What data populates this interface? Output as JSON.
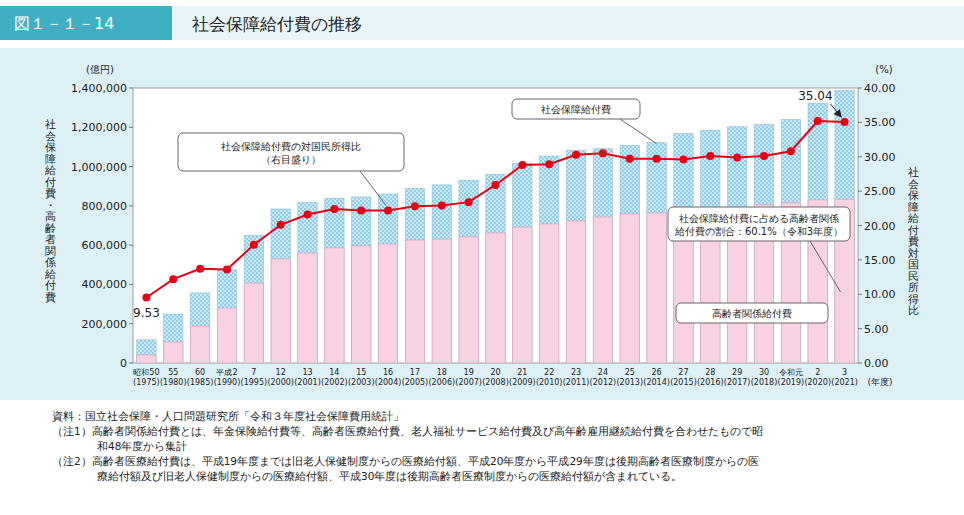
{
  "chart_data": {
    "type": "bar",
    "figure_number": "図１－１－14",
    "title": "社会保障給付費の推移",
    "categories": [
      "昭和50\n(1975)",
      "55\n(1980)",
      "60\n(1985)",
      "平成2\n(1990)",
      "7\n(1995)",
      "12\n(2000)",
      "13\n(2001)",
      "14\n(2002)",
      "15\n(2003)",
      "16\n(2004)",
      "17\n(2005)",
      "18\n(2006)",
      "19\n(2007)",
      "20\n(2008)",
      "21\n(2009)",
      "22\n(2010)",
      "23\n(2011)",
      "24\n(2012)",
      "25\n(2013)",
      "26\n(2014)",
      "27\n(2015)",
      "28\n(2016)",
      "29\n(2017)",
      "30\n(2018)",
      "令和元\n(2019)",
      "2\n(2020)",
      "3\n(2021)"
    ],
    "series": [
      {
        "name": "社会保障給付費",
        "type": "bar",
        "color": "#c9ebf8",
        "values": [
          117693,
          249016,
          356798,
          474238,
          649842,
          783985,
          816784,
          838402,
          845305,
          860436,
          888529,
          906727,
          930702,
          959975,
          1016977,
          1053656,
          1082745,
          1090782,
          1107796,
          1121734,
          1168403,
          1184089,
          1202443,
          1213987,
          1239241,
          1322211,
          1387433
        ]
      },
      {
        "name": "高齢者関係給付費",
        "type": "bar",
        "color": "#f8d2e3",
        "values": [
          41000,
          107000,
          188000,
          280000,
          407000,
          530000,
          560000,
          586000,
          596000,
          606000,
          626000,
          631000,
          642000,
          662000,
          692000,
          708000,
          723000,
          743000,
          759000,
          764000,
          774000,
          784000,
          789000,
          805000,
          815000,
          830000,
          834000
        ]
      },
      {
        "name": "社会保障給付費の対国民所得比",
        "type": "line",
        "axis": "y2",
        "color": "#e60012",
        "marker": "circle",
        "values": [
          9.53,
          12.2,
          13.7,
          13.6,
          17.2,
          20.1,
          21.6,
          22.4,
          22.2,
          22.2,
          22.8,
          22.9,
          23.4,
          25.9,
          28.8,
          28.9,
          30.3,
          30.5,
          29.7,
          29.7,
          29.6,
          30.1,
          29.9,
          30.1,
          30.8,
          35.2,
          35.04
        ],
        "value_labels": [
          "9.53",
          null,
          null,
          null,
          null,
          null,
          null,
          null,
          null,
          null,
          null,
          null,
          null,
          null,
          null,
          null,
          null,
          null,
          null,
          null,
          null,
          null,
          null,
          null,
          null,
          null,
          "35.04"
        ]
      }
    ],
    "stacked": false,
    "grid": false,
    "ylim": [
      0,
      1400000
    ],
    "yticks": [
      0,
      {
        "value": 200000,
        "label": "200,000"
      },
      {
        "value": 400000,
        "label": "400,000"
      },
      {
        "value": 600000,
        "label": "600,000"
      },
      {
        "value": 800000,
        "label": "800,000"
      },
      {
        "value": 1000000,
        "label": "1,000,000"
      },
      {
        "value": 1200000,
        "label": "1,200,000"
      },
      {
        "value": 1400000,
        "label": "1,400,000"
      }
    ],
    "y2lim": [
      0,
      40
    ],
    "y2ticks": [
      {
        "value": 0,
        "label": "0.00"
      },
      {
        "value": 5,
        "label": "5.00"
      },
      {
        "value": 10,
        "label": "10.00"
      },
      {
        "value": 15,
        "label": "15.00"
      },
      {
        "value": 20,
        "label": "20.00"
      },
      {
        "value": 25,
        "label": "25.00"
      },
      {
        "value": 30,
        "label": "30.00"
      },
      {
        "value": 35,
        "label": "35.00"
      },
      {
        "value": 40,
        "label": "40.00"
      }
    ],
    "y_unit": "(億円)",
    "y_label": "社会保障給付費・高齢者関係給付費",
    "y2_unit": "(%)",
    "y2_label": "社会保障給付費対国民所得比",
    "x_label": "(年度)",
    "annotations": {
      "ratio_note": "（右目盛り）",
      "elderly_share": [
        "社会保障給付費に占める高齢者関係",
        "給付費の割合：60.1%（令和3年度）"
      ]
    },
    "notes": [
      [
        "資料：国立社会保障・人口問題研究所「令和３年度社会保障費用統計」"
      ],
      [
        "（注1）高齢者関係給付費とは、年金保険給付費等、高齢者医療給付費、老人福祉サービス給付費及び高年齢雇用継続給付費を合わせたもので昭",
        "和48年度から集計"
      ],
      [
        "（注2）高齢者医療給付費は、平成19年度までは旧老人保健制度からの医療給付額、平成20年度から平成29年度は後期高齢者医療制度からの医",
        "療給付額及び旧老人保健制度からの医療給付額、平成30年度は後期高齢者医療制度からの医療給付額が含まれている。"
      ]
    ]
  }
}
